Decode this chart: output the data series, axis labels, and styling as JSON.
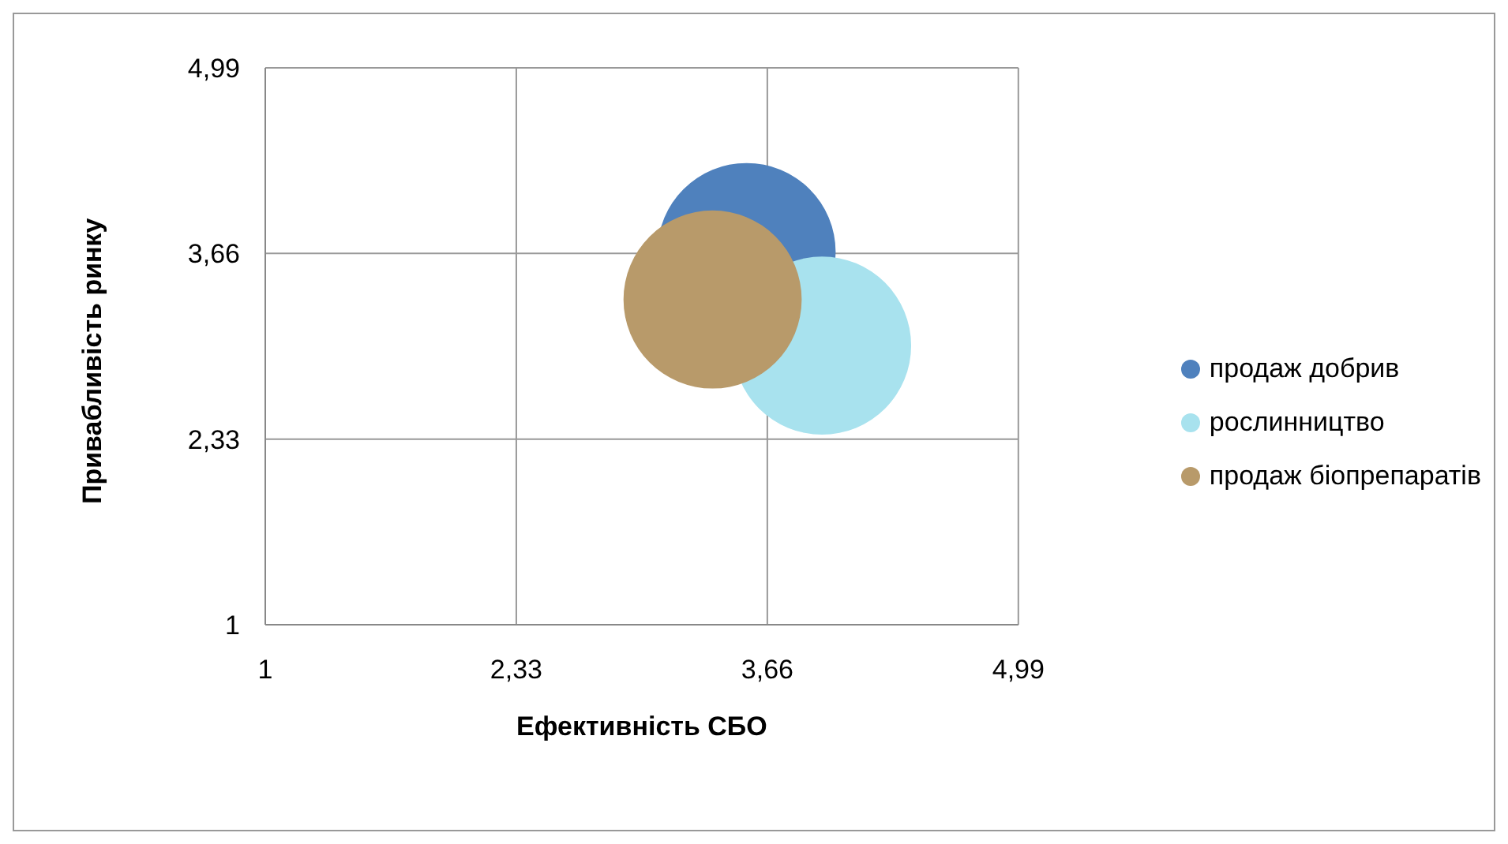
{
  "chart_data": {
    "type": "bubble",
    "xlabel": "Ефективність СБО",
    "ylabel": "Привабливість ринку",
    "xlim": [
      1,
      4.99
    ],
    "ylim": [
      1,
      4.99
    ],
    "xticks": [
      {
        "value": 1,
        "label": "1"
      },
      {
        "value": 2.33,
        "label": "2,33"
      },
      {
        "value": 3.66,
        "label": "3,66"
      },
      {
        "value": 4.99,
        "label": "4,99"
      }
    ],
    "yticks": [
      {
        "value": 1,
        "label": "1"
      },
      {
        "value": 2.33,
        "label": "2,33"
      },
      {
        "value": 3.66,
        "label": "3,66"
      },
      {
        "value": 4.99,
        "label": "4,99"
      }
    ],
    "grid": true,
    "legend": "right",
    "series": [
      {
        "name": "продаж добрив",
        "color": "#4f81bd",
        "x": [
          3.55
        ],
        "values": [
          3.67
        ],
        "sizes": [
          1
        ]
      },
      {
        "name": "рослинництво",
        "color": "#a8e2ee",
        "x": [
          3.95
        ],
        "values": [
          3.0
        ],
        "sizes": [
          1
        ]
      },
      {
        "name": "продаж біопрепаратів",
        "color": "#b89a6a",
        "x": [
          3.37
        ],
        "values": [
          3.33
        ],
        "sizes": [
          1
        ]
      }
    ]
  }
}
